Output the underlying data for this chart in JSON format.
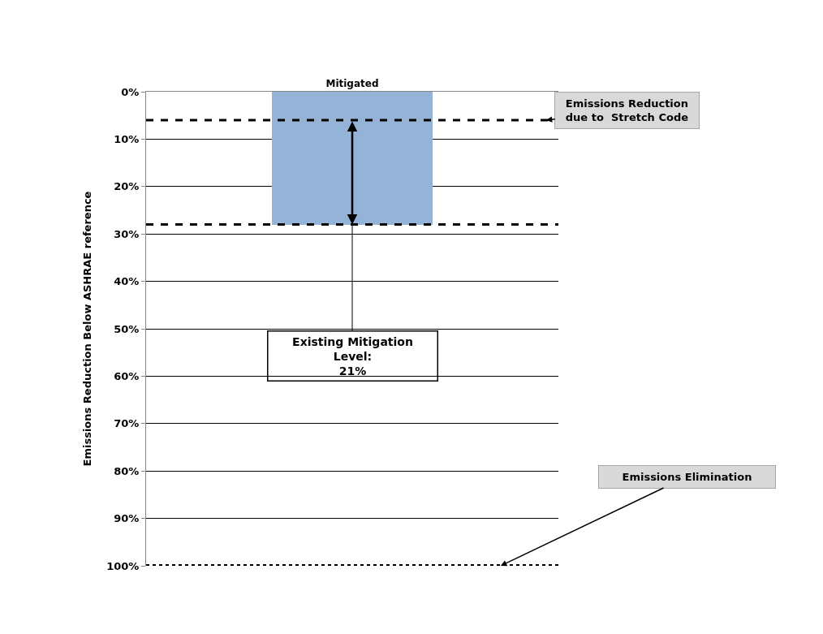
{
  "chart_data": {
    "type": "bar",
    "categories": [
      "Mitigated"
    ],
    "values": [
      28
    ],
    "color": "#95b3d7",
    "ylabel": "Emissions Reduction Below ASHRAE reference",
    "ylim": [
      100,
      0
    ],
    "yticks": [
      {
        "value": 0,
        "label": "0%"
      },
      {
        "value": 10,
        "label": "10%"
      },
      {
        "value": 20,
        "label": "20%"
      },
      {
        "value": 30,
        "label": "30%"
      },
      {
        "value": 40,
        "label": "40%"
      },
      {
        "value": 50,
        "label": "50%"
      },
      {
        "value": 60,
        "label": "60%"
      },
      {
        "value": 70,
        "label": "70%"
      },
      {
        "value": 80,
        "label": "80%"
      },
      {
        "value": 90,
        "label": "90%"
      },
      {
        "value": 100,
        "label": "100%"
      }
    ],
    "grid": "y",
    "ref_lines": [
      {
        "axis": "y",
        "value": 6,
        "color": "#000000",
        "line_style": "dashed",
        "label": "Emissions Reduction\ndue to  Stretch Code"
      },
      {
        "axis": "y",
        "value": 28,
        "color": "#000000",
        "line_style": "dashed"
      },
      {
        "axis": "y",
        "value": 100,
        "color": "#000000",
        "line_style": "dotted",
        "label": "Emissions Elimination"
      }
    ],
    "annotations": [
      {
        "text": "Existing Mitigation\nLevel:\n21%",
        "x": "Mitigated",
        "y": 28
      }
    ]
  }
}
